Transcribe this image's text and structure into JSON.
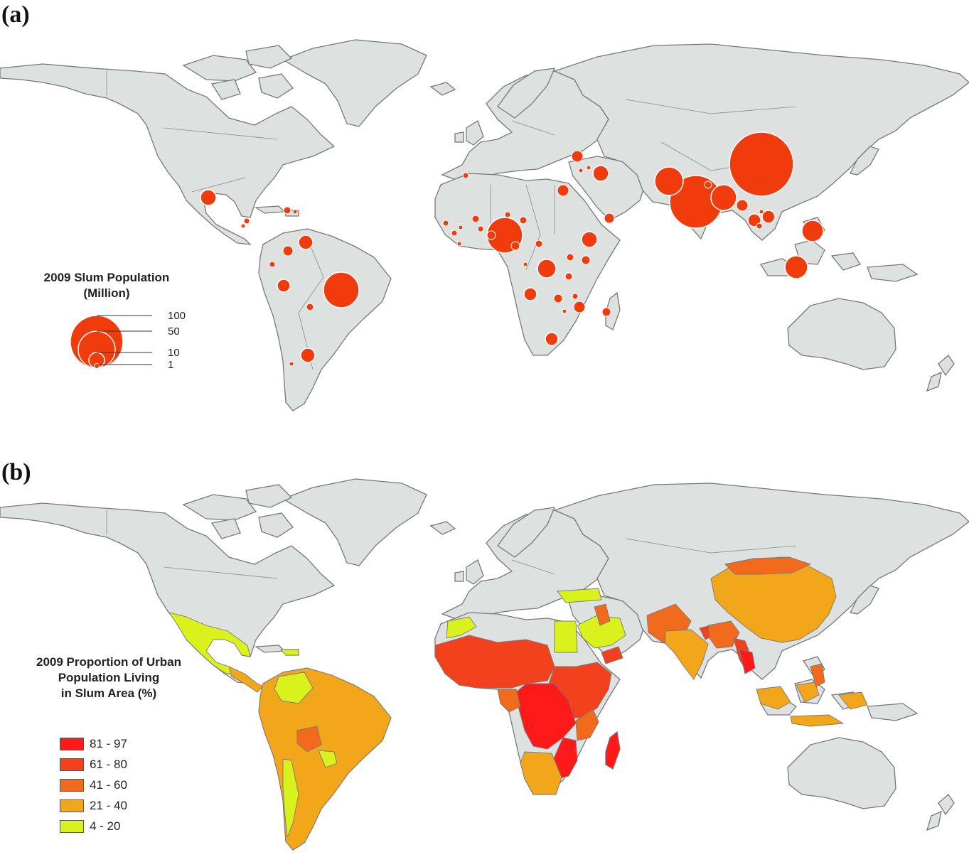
{
  "panel_a": {
    "label": "(a)",
    "legend": {
      "title_line1": "2009 Slum Population",
      "title_line2": "(Million)",
      "sizes": [
        "100",
        "50",
        "10",
        "1"
      ]
    }
  },
  "panel_b": {
    "label": "(b)",
    "legend": {
      "title_line1": "2009 Proportion of Urban",
      "title_line2": "Population Living",
      "title_line3": "in Slum Area (%)",
      "classes": [
        {
          "label": "81 - 97",
          "color": "#ff1a1a"
        },
        {
          "label": "61 - 80",
          "color": "#f2411c"
        },
        {
          "label": "41 - 60",
          "color": "#f26a1c"
        },
        {
          "label": "21 - 40",
          "color": "#f2a71b"
        },
        {
          "label": "4 - 20",
          "color": "#d9f21c"
        }
      ]
    }
  },
  "colors": {
    "land": "#dde1e0",
    "border": "#787878",
    "bubble": "#f03c0c",
    "bubble_stroke": "#ffffff"
  }
}
